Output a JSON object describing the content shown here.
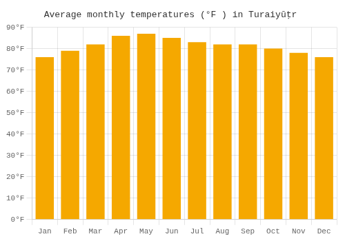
{
  "chart_data": {
    "type": "bar",
    "title": "Average monthly temperatures (°F ) in Turaiyūṭr",
    "categories": [
      "Jan",
      "Feb",
      "Mar",
      "Apr",
      "May",
      "Jun",
      "Jul",
      "Aug",
      "Sep",
      "Oct",
      "Nov",
      "Dec"
    ],
    "values": [
      76,
      79,
      82,
      86,
      87,
      85,
      83,
      82,
      82,
      80,
      78,
      76
    ],
    "color": "#F5A800",
    "ylim": [
      0,
      90
    ],
    "yticks": [
      {
        "value": 0,
        "label": "0°F"
      },
      {
        "value": 10,
        "label": "10°F"
      },
      {
        "value": 20,
        "label": "20°F"
      },
      {
        "value": 30,
        "label": "30°F"
      },
      {
        "value": 40,
        "label": "40°F"
      },
      {
        "value": 50,
        "label": "50°F"
      },
      {
        "value": 60,
        "label": "60°F"
      },
      {
        "value": 70,
        "label": "70°F"
      },
      {
        "value": 80,
        "label": "80°F"
      },
      {
        "value": 90,
        "label": "90°F"
      }
    ],
    "grid": true
  }
}
